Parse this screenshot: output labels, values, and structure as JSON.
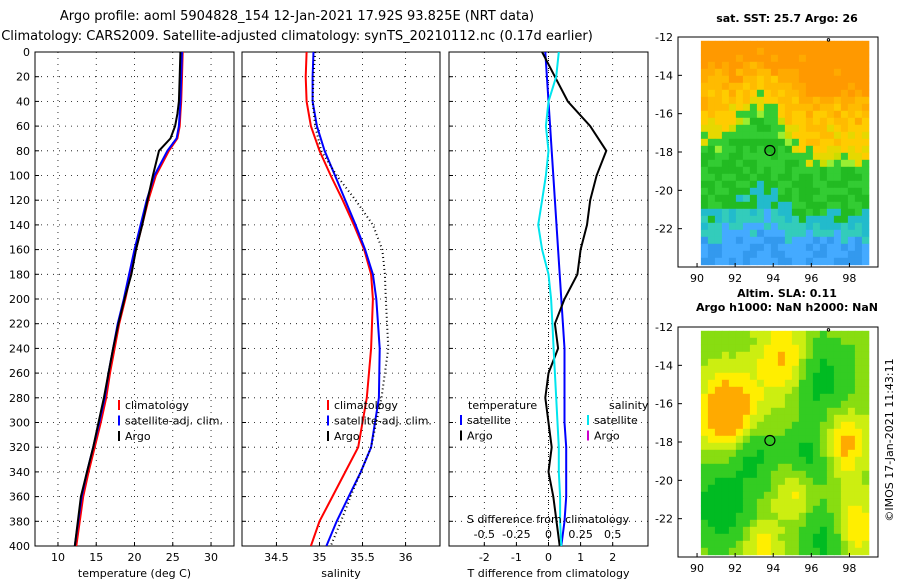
{
  "title_line1": "Argo profile: aoml 5904828_154 12-Jan-2021 17.92S 93.825E (NRT data)",
  "title_line2": "Climatology: CARS2009. Satellite-adjusted climatology: synTS_20210112.nc (0.17d earlier)",
  "watermark": "©IMOS 17-Jan-2021 11:43:11",
  "colors": {
    "climatology": "#ff0000",
    "satellite": "#0000ff",
    "argo": "#000000",
    "sat_salinity": "#00e5ee",
    "argo_salinity": "#cc00cc"
  },
  "chart_data": [
    {
      "id": "temperature",
      "type": "line",
      "xlabel": "temperature (deg C)",
      "xlim": [
        7,
        33
      ],
      "ylim": [
        0,
        400
      ],
      "xticks": [
        10,
        15,
        20,
        25,
        30
      ],
      "yticks": [
        0,
        20,
        40,
        60,
        80,
        100,
        120,
        140,
        160,
        180,
        200,
        220,
        240,
        260,
        280,
        300,
        320,
        340,
        360,
        380,
        400
      ],
      "legend": [
        "climatology",
        "satellite-adj. clim.",
        "Argo"
      ],
      "legend_position": "bottom-right",
      "series": [
        {
          "name": "climatology",
          "color": "#ff0000",
          "x": [
            26.3,
            26.2,
            26.1,
            26.0,
            25.9,
            25.6,
            24.5,
            22.8,
            21.8,
            21.0,
            20.2,
            19.5,
            18.8,
            18.0,
            17.4,
            16.8,
            16.3,
            15.6,
            14.8,
            14.0,
            13.3,
            12.4
          ],
          "y": [
            0,
            20,
            40,
            50,
            60,
            70,
            80,
            100,
            120,
            140,
            160,
            180,
            200,
            220,
            240,
            260,
            280,
            300,
            320,
            340,
            360,
            400
          ]
        },
        {
          "name": "satellite-adj. clim.",
          "color": "#0000ff",
          "x": [
            26.2,
            26.1,
            26.0,
            25.9,
            25.8,
            25.5,
            24.3,
            22.6,
            21.6,
            20.8,
            20.0,
            19.3,
            18.6,
            17.8,
            17.2,
            16.6,
            16.1,
            15.4,
            14.6,
            13.8,
            13.1,
            12.2
          ],
          "y": [
            0,
            20,
            40,
            50,
            60,
            70,
            80,
            100,
            120,
            140,
            160,
            180,
            200,
            220,
            240,
            260,
            280,
            300,
            320,
            340,
            360,
            400
          ]
        },
        {
          "name": "Argo",
          "color": "#000000",
          "x": [
            26.0,
            25.9,
            25.8,
            25.6,
            25.3,
            24.7,
            23.2,
            22.4,
            21.7,
            21.0,
            20.2,
            19.6,
            18.7,
            17.9,
            17.2,
            16.6,
            16.0,
            15.3,
            14.6,
            13.8,
            13.0,
            12.2
          ],
          "y": [
            0,
            20,
            40,
            50,
            60,
            70,
            80,
            100,
            120,
            140,
            160,
            180,
            200,
            220,
            240,
            260,
            280,
            300,
            320,
            340,
            360,
            400
          ]
        }
      ]
    },
    {
      "id": "salinity",
      "type": "line",
      "xlabel": "salinity",
      "xlim": [
        34.1,
        36.4
      ],
      "ylim": [
        0,
        400
      ],
      "xticks": [
        34.5,
        35,
        35.5,
        36
      ],
      "xtick_labels": [
        "34.5",
        "35",
        "35.5",
        "36"
      ],
      "legend": [
        "climatology",
        "satellite-adj. clim.",
        "Argo"
      ],
      "legend_position": "bottom-right",
      "series": [
        {
          "name": "climatology",
          "color": "#ff0000",
          "x": [
            34.85,
            34.84,
            34.85,
            34.9,
            35.0,
            35.13,
            35.27,
            35.4,
            35.52,
            35.6,
            35.62,
            35.6,
            35.55,
            35.45,
            35.3,
            35.15,
            35.0,
            34.9
          ],
          "y": [
            0,
            20,
            40,
            60,
            80,
            100,
            120,
            140,
            160,
            180,
            200,
            240,
            280,
            320,
            340,
            360,
            380,
            400
          ]
        },
        {
          "name": "satellite-adj. clim.",
          "color": "#0000ff",
          "x": [
            34.93,
            34.92,
            34.92,
            34.97,
            35.06,
            35.18,
            35.3,
            35.42,
            35.53,
            35.62,
            35.66,
            35.7,
            35.69,
            35.6,
            35.48,
            35.34,
            35.2,
            35.08
          ],
          "y": [
            0,
            20,
            40,
            60,
            80,
            100,
            120,
            140,
            160,
            180,
            200,
            240,
            280,
            320,
            340,
            360,
            380,
            400
          ]
        },
        {
          "name": "Argo",
          "color": "#000000",
          "x": [
            34.95,
            34.93,
            34.92,
            34.95,
            35.02,
            35.2,
            35.42,
            35.62,
            35.73,
            35.76,
            35.77,
            35.8,
            35.72,
            35.6,
            35.48,
            35.36,
            35.25,
            35.13
          ],
          "y": [
            0,
            20,
            40,
            60,
            80,
            100,
            120,
            140,
            160,
            180,
            200,
            240,
            280,
            320,
            340,
            360,
            380,
            400
          ]
        }
      ]
    },
    {
      "id": "difference",
      "type": "line",
      "xlabel": "T difference from climatology",
      "xlim": [
        -3.1,
        3.1
      ],
      "ylim": [
        0,
        400
      ],
      "xticks": [
        -2,
        -1,
        0,
        1,
        2
      ],
      "secondary_xlabel": "S difference from climatology",
      "secondary_xlim": [
        -0.775,
        0.775
      ],
      "secondary_xticks": [
        -0.5,
        -0.25,
        0,
        0.25,
        0.5
      ],
      "secondary_xtick_labels": [
        "-0.5",
        "-0.25",
        "0",
        "0.25",
        "0.5"
      ],
      "legend_temperature": {
        "title": "temperature",
        "items": [
          "satellite",
          "Argo"
        ]
      },
      "legend_salinity": {
        "title": "salinity",
        "items": [
          "satellite",
          "Argo"
        ]
      },
      "series": [
        {
          "name": "temperature satellite",
          "color": "#0000ff",
          "x": [
            -0.1,
            -0.05,
            0.0,
            0.05,
            0.1,
            0.15,
            0.2,
            0.25,
            0.3,
            0.35,
            0.4,
            0.45,
            0.5,
            0.5,
            0.5,
            0.5,
            0.55,
            0.55,
            0.55,
            0.5,
            0.45,
            0.4
          ],
          "y": [
            0,
            20,
            40,
            60,
            80,
            100,
            120,
            140,
            160,
            180,
            200,
            220,
            240,
            260,
            280,
            300,
            320,
            340,
            360,
            380,
            390,
            400
          ]
        },
        {
          "name": "temperature Argo",
          "color": "#000000",
          "x": [
            -0.2,
            0.2,
            0.6,
            1.3,
            1.8,
            1.5,
            1.3,
            1.2,
            1.0,
            0.9,
            0.5,
            0.2,
            0.3,
            0.0,
            -0.1,
            0.0,
            0.1,
            0.0,
            0.15,
            0.25,
            0.35
          ],
          "y": [
            0,
            20,
            40,
            60,
            80,
            100,
            120,
            140,
            160,
            180,
            200,
            220,
            240,
            260,
            280,
            300,
            320,
            340,
            360,
            380,
            400
          ]
        },
        {
          "name": "salinity satellite",
          "color": "#00e5ee",
          "x": [
            0.08,
            0.06,
            0.0,
            -0.02,
            0.0,
            -0.02,
            -0.05,
            -0.08,
            -0.05,
            0.0,
            0.02,
            0.03,
            0.04,
            0.05,
            0.06,
            0.07,
            0.08,
            0.08,
            0.09,
            0.09,
            0.1
          ],
          "y": [
            0,
            20,
            40,
            60,
            80,
            100,
            120,
            140,
            160,
            180,
            200,
            220,
            240,
            260,
            280,
            300,
            320,
            340,
            360,
            380,
            400
          ]
        }
      ]
    },
    {
      "id": "sst_map",
      "type": "heatmap",
      "title": "sat. SST: 25.7 Argo: 26",
      "xlim": [
        89,
        99.5
      ],
      "ylim": [
        -24,
        -12
      ],
      "xticks": [
        90,
        92,
        94,
        96,
        98
      ],
      "yticks": [
        -12,
        -14,
        -16,
        -18,
        -20,
        -22
      ],
      "argo_position": [
        93.825,
        -17.92
      ]
    },
    {
      "id": "sla_map",
      "type": "heatmap",
      "title_line1": "Altim. SLA: 0.11",
      "title_line2": "Argo h1000: NaN h2000: NaN",
      "xlim": [
        89,
        99.5
      ],
      "ylim": [
        -24,
        -12
      ],
      "xticks": [
        90,
        92,
        94,
        96,
        98
      ],
      "yticks": [
        -12,
        -14,
        -16,
        -18,
        -20,
        -22
      ],
      "argo_position": [
        93.825,
        -17.92
      ]
    }
  ]
}
